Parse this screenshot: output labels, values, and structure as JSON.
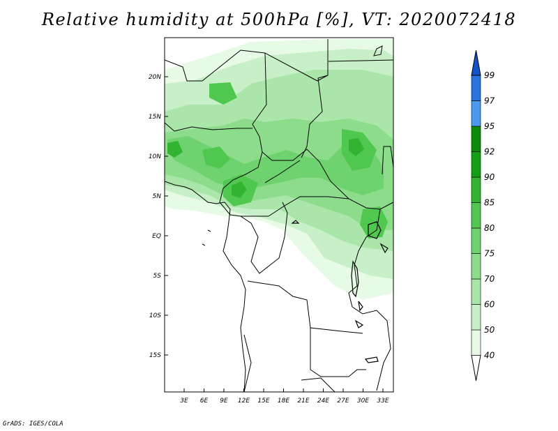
{
  "title": "Relative humidity at 500hPa [%], VT: 2020072418",
  "credit": "GrADS: IGES/COLA",
  "map": {
    "lon_ticks": [
      "3E",
      "6E",
      "9E",
      "12E",
      "15E",
      "18E",
      "21E",
      "24E",
      "27E",
      "30E",
      "33E"
    ],
    "lat_ticks": [
      "20N",
      "15N",
      "10N",
      "5N",
      "EQ",
      "5S",
      "10S",
      "15S"
    ]
  },
  "colorbar": {
    "labels": [
      "40",
      "50",
      "60",
      "70",
      "75",
      "80",
      "85",
      "90",
      "92",
      "95",
      "97",
      "99"
    ],
    "colors": [
      "#ffffff",
      "#e6fae6",
      "#c8f0c8",
      "#aae6aa",
      "#8cdc8c",
      "#6ed26e",
      "#50c850",
      "#32b432",
      "#14a014",
      "#0a8c0a",
      "#4a9af0",
      "#2a74e0",
      "#1452c8"
    ]
  }
}
